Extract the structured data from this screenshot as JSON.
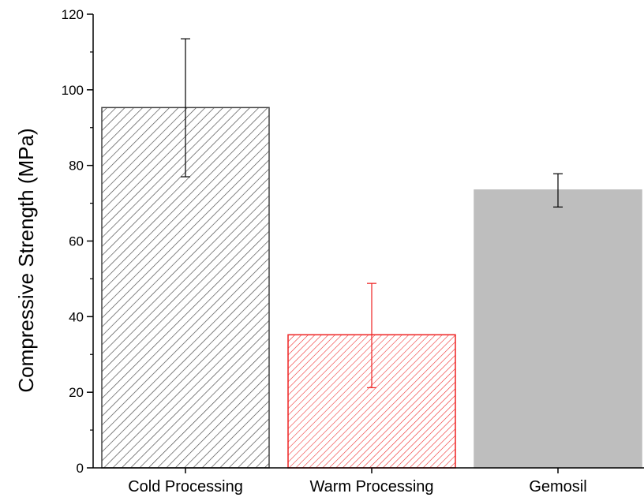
{
  "chart_data": {
    "type": "bar",
    "categories": [
      "Cold Processing",
      "Warm Processing",
      "Gemosil"
    ],
    "values": [
      95.3,
      35.2,
      73.5
    ],
    "errors": [
      {
        "low": 77.0,
        "high": 113.5
      },
      {
        "low": 21.2,
        "high": 48.8
      },
      {
        "low": 69.0,
        "high": 77.8
      }
    ],
    "bar_styles": [
      {
        "fill": "hatch",
        "color": "#444444"
      },
      {
        "fill": "hatch",
        "color": "#ee2222"
      },
      {
        "fill": "solid",
        "color": "#bebebe"
      }
    ],
    "error_colors": [
      "#000000",
      "#ee2222",
      "#000000"
    ],
    "title": "",
    "xlabel": "",
    "ylabel": "Compressive Strength (MPa)",
    "ylim": [
      0,
      120
    ],
    "yticks": [
      0,
      20,
      40,
      60,
      80,
      100,
      120
    ],
    "yticks_minor_step": 10,
    "grid": false,
    "legend": "none"
  }
}
